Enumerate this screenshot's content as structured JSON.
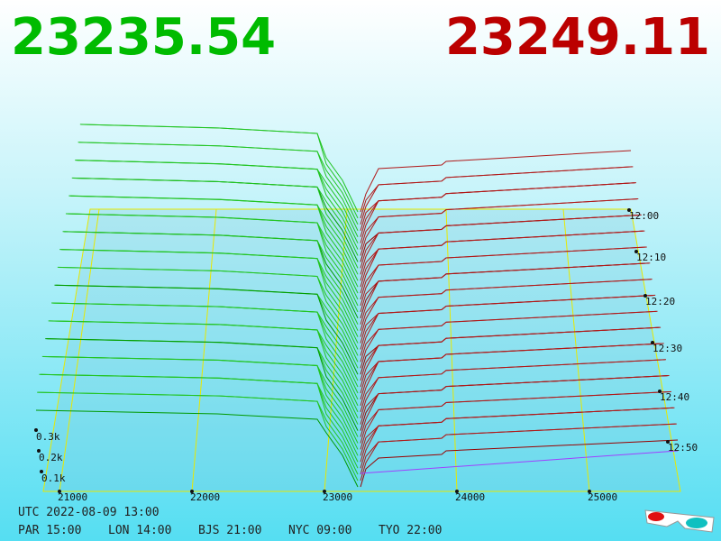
{
  "header": {
    "bid": "23235.54",
    "ask": "23249.11"
  },
  "price_axis": {
    "labels": [
      "21000",
      "22000",
      "23000",
      "24000",
      "25000"
    ]
  },
  "volume_axis": {
    "labels": [
      "0.3k",
      "0.2k",
      "0.1k"
    ]
  },
  "time_axis": {
    "labels": [
      "12:00",
      "12:10",
      "12:20",
      "12:30",
      "12:40",
      "12:50"
    ]
  },
  "footer": {
    "utc": "UTC 2022-08-09 13:00",
    "cities": [
      "PAR 15:00",
      "LON 14:00",
      "BJS 21:00",
      "NYC 09:00",
      "TYO 22:00"
    ]
  }
}
